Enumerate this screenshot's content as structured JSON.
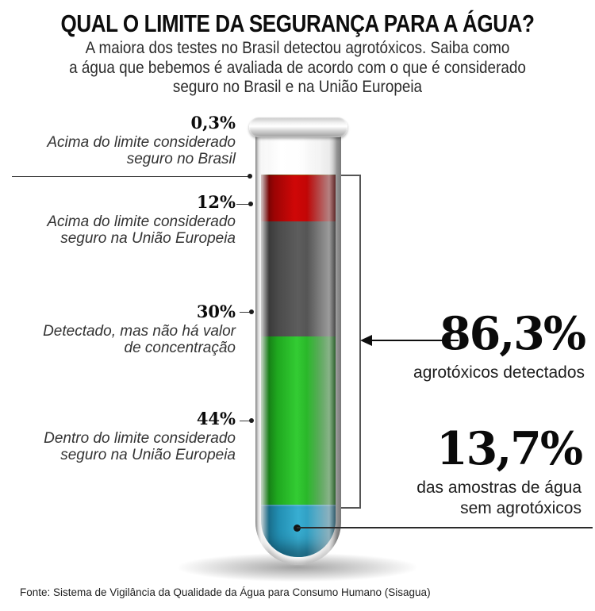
{
  "header": {
    "title": "QUAL O LIMITE DA SEGURANÇA PARA A ÁGUA?",
    "subtitle_line1": "A maiora dos testes no Brasil detectou agrotóxicos. Saiba como",
    "subtitle_line2": "a água que bebemos é avaliada de acordo com o que é considerado",
    "subtitle_line3": "seguro no Brasil e na União Europeia"
  },
  "left_labels": [
    {
      "pct": "0,3%",
      "line1": "Acima do limite considerado",
      "line2": "seguro no Brasil"
    },
    {
      "pct": "12%",
      "line1": "Acima do limite considerado",
      "line2": "seguro na União Europeia"
    },
    {
      "pct": "30%",
      "line1": "Detectado, mas não há valor",
      "line2": "de concentração"
    },
    {
      "pct": "44%",
      "line1": "Dentro do limite considerado",
      "line2": "seguro na União Europeia"
    }
  ],
  "callouts": [
    {
      "value": "86,3%",
      "line1": "agrotóxicos detectados"
    },
    {
      "value": "13,7%",
      "line1": "das amostras de água",
      "line2": "sem agrotóxicos"
    }
  ],
  "footer": {
    "source": "Fonte: Sistema de Vigilância da Qualidade da Água para Consumo Humano (Sisagua)"
  },
  "colors": {
    "meniscus": "#8a4a0a",
    "red": "#c40606",
    "gray": "#4c4c4c",
    "green": "#2bbf2b",
    "blue": "#2a93b6",
    "line": "#3a3a3a",
    "text": "#111111"
  },
  "chart_data": {
    "type": "bar",
    "variant": "stacked-single-bar-test-tube",
    "title": "QUAL O LIMITE DA SEGURANÇA PARA A ÁGUA?",
    "subtitle": "A maiora dos testes no Brasil detectou agrotóxicos. Saiba como a água que bebemos é avaliada de acordo com o que é considerado seguro no Brasil e na União Europeia",
    "unit": "%",
    "categories": [
      "Acima do limite considerado seguro no Brasil",
      "Acima do limite considerado seguro na União Europeia",
      "Detectado, mas não há valor de concentração",
      "Dentro do limite considerado seguro na União Europeia",
      "Das amostras de água sem agrotóxicos"
    ],
    "values": [
      0.3,
      12,
      30,
      44,
      13.7
    ],
    "segment_colors": [
      "#8a4a0a",
      "#c40606",
      "#4c4c4c",
      "#2bbf2b",
      "#2a93b6"
    ],
    "aggregates": [
      {
        "label": "agrotóxicos detectados",
        "value": 86.3
      },
      {
        "label": "das amostras de água sem agrotóxicos",
        "value": 13.7
      }
    ],
    "source": "Fonte: Sistema de Vigilância da Qualidade da Água para Consumo Humano (Sisagua)"
  }
}
